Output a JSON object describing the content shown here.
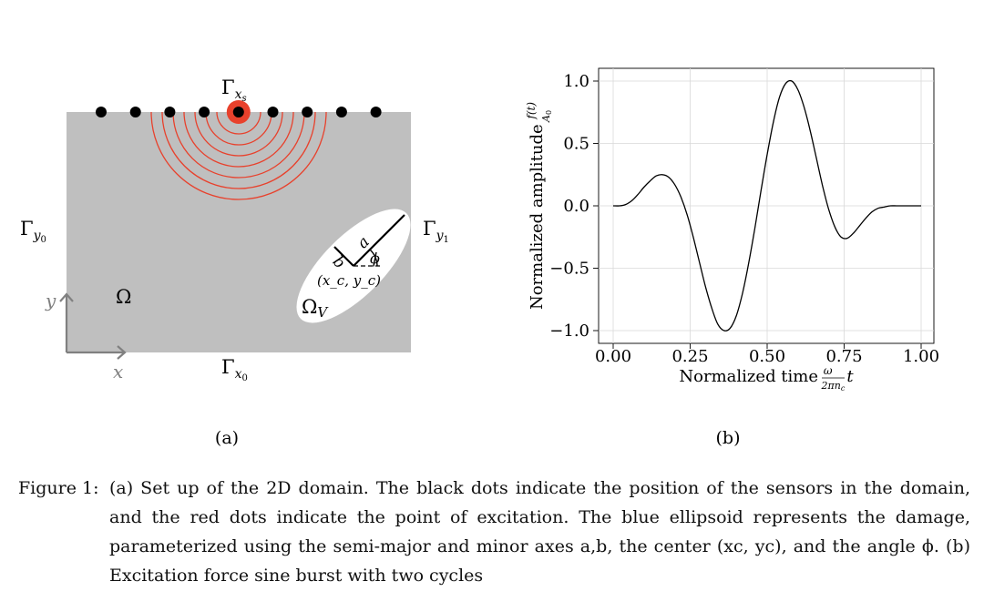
{
  "panel_a": {
    "label_gamma_xs_main": "Γ",
    "label_gamma_xs_sub": "xs",
    "label_gamma_x0_main": "Γ",
    "label_gamma_x0_sub": "x0",
    "label_gamma_y0_main": "Γ",
    "label_gamma_y0_sub": "y0",
    "label_gamma_y1_main": "Γ",
    "label_gamma_y1_sub": "y1",
    "label_omega": "Ω",
    "label_omega_v_main": "Ω",
    "label_omega_v_sub": "V",
    "label_a": "a",
    "label_b": "b",
    "label_phi": "ϕ",
    "label_center": "(x_c, y_c)",
    "axis_x": "x",
    "axis_y": "y",
    "sensor_count": 9,
    "excitation_sensor_index": 4,
    "wave_ring_count": 8,
    "colors": {
      "domain": "#bfbfbf",
      "sensor": "#000000",
      "excitation": "#e8412c",
      "wave": "#e8412c",
      "damage": "#ffffff",
      "axes": "#808080"
    },
    "sublabel": "(a)"
  },
  "panel_b": {
    "sublabel": "(b)",
    "chart_data": {
      "type": "line",
      "xlabel": "Normalized time ω/(2πn_c) t",
      "ylabel": "Normalized amplitude f(t)/A0",
      "xlim": [
        0.0,
        1.0
      ],
      "ylim": [
        -1.0,
        1.0
      ],
      "xticks": [
        "0.00",
        "0.25",
        "0.50",
        "0.75",
        "1.00"
      ],
      "yticks": [
        "−1.0",
        "−0.5",
        "0.0",
        "0.5",
        "1.0"
      ],
      "grid": true,
      "series": [
        {
          "color": "#000000",
          "x": [
            0.0,
            0.02,
            0.04,
            0.06,
            0.08,
            0.1,
            0.12,
            0.14,
            0.16,
            0.18,
            0.2,
            0.22,
            0.24,
            0.26,
            0.28,
            0.3,
            0.32,
            0.34,
            0.36,
            0.38,
            0.4,
            0.42,
            0.44,
            0.46,
            0.48,
            0.5,
            0.52,
            0.54,
            0.56,
            0.58,
            0.6,
            0.62,
            0.64,
            0.66,
            0.68,
            0.7,
            0.72,
            0.74,
            0.76,
            0.78,
            0.8,
            0.82,
            0.84,
            0.86,
            0.88,
            0.9,
            0.92,
            0.94,
            0.96,
            0.98,
            1.0
          ],
          "y": [
            0.0,
            0.0,
            0.01,
            0.04,
            0.09,
            0.15,
            0.2,
            0.24,
            0.25,
            0.23,
            0.17,
            0.07,
            -0.07,
            -0.25,
            -0.45,
            -0.65,
            -0.82,
            -0.95,
            -1.0,
            -0.98,
            -0.88,
            -0.7,
            -0.46,
            -0.18,
            0.12,
            0.41,
            0.67,
            0.87,
            0.98,
            1.0,
            0.93,
            0.79,
            0.6,
            0.38,
            0.16,
            -0.03,
            -0.17,
            -0.25,
            -0.26,
            -0.22,
            -0.16,
            -0.1,
            -0.05,
            -0.02,
            -0.01,
            0.0,
            0.0,
            0.0,
            0.0,
            0.0,
            0.0
          ]
        }
      ]
    }
  },
  "caption": {
    "label": "Figure 1:",
    "text": "(a) Set up of the 2D domain. The black dots indicate the position of the sensors in the domain, and the red dots indicate the point of excitation. The blue ellipsoid represents the damage, parameterized using the semi-major and minor axes a,b, the center (xc, yc), and the angle ϕ. (b) Excitation force sine burst with two cycles"
  }
}
